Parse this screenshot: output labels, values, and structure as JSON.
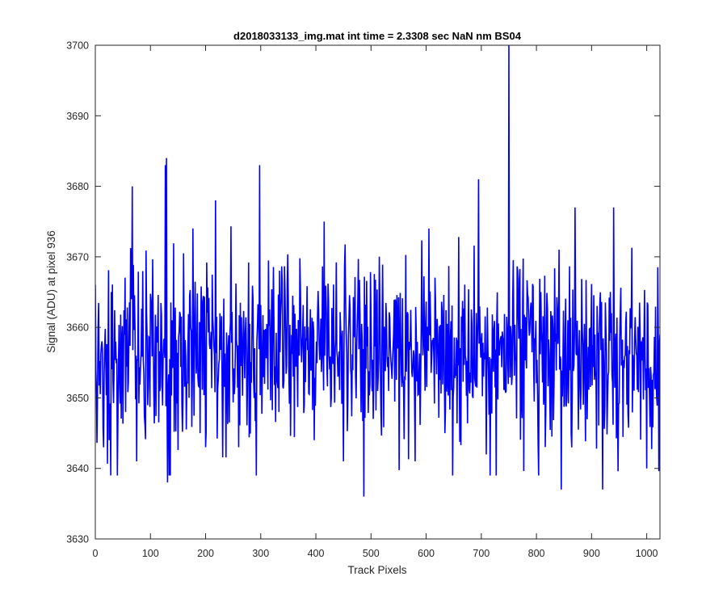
{
  "chart_data": {
    "type": "line",
    "title": "d2018033133_img.mat int time = 2.3308 sec  NaN nm BS04",
    "xlabel": "Track Pixels",
    "ylabel": "Signal (ADU) at pixel 936",
    "xlim": [
      0,
      1024
    ],
    "ylim": [
      3630,
      3700
    ],
    "xticks": [
      0,
      100,
      200,
      300,
      400,
      500,
      600,
      700,
      800,
      900,
      1000
    ],
    "yticks": [
      3630,
      3640,
      3650,
      3660,
      3670,
      3680,
      3690,
      3700
    ],
    "grid": false,
    "line_color": "#0000ff",
    "series": [
      {
        "x_start": 1,
        "x_step": 1,
        "n_points": 1024,
        "noise_model": {
          "mean": 3656.5,
          "std": 6.5,
          "seed": 20180331
        },
        "values_sampled": [
          {
            "x": 0,
            "y": 3666
          },
          {
            "x": 2,
            "y": 3651
          },
          {
            "x": 15,
            "y": 3643
          },
          {
            "x": 25,
            "y": 3644
          },
          {
            "x": 28,
            "y": 3639
          },
          {
            "x": 40,
            "y": 3639
          },
          {
            "x": 55,
            "y": 3648
          },
          {
            "x": 67,
            "y": 3680
          },
          {
            "x": 75,
            "y": 3641
          },
          {
            "x": 127,
            "y": 3683
          },
          {
            "x": 129,
            "y": 3684
          },
          {
            "x": 131,
            "y": 3638
          },
          {
            "x": 190,
            "y": 3645
          },
          {
            "x": 200,
            "y": 3643
          },
          {
            "x": 218,
            "y": 3678
          },
          {
            "x": 260,
            "y": 3643
          },
          {
            "x": 292,
            "y": 3639
          },
          {
            "x": 298,
            "y": 3683
          },
          {
            "x": 333,
            "y": 3648
          },
          {
            "x": 397,
            "y": 3644
          },
          {
            "x": 415,
            "y": 3675
          },
          {
            "x": 450,
            "y": 3641
          },
          {
            "x": 487,
            "y": 3636
          },
          {
            "x": 580,
            "y": 3641
          },
          {
            "x": 605,
            "y": 3674
          },
          {
            "x": 648,
            "y": 3639
          },
          {
            "x": 695,
            "y": 3681
          },
          {
            "x": 750,
            "y": 3700
          },
          {
            "x": 845,
            "y": 3637
          },
          {
            "x": 870,
            "y": 3677
          },
          {
            "x": 920,
            "y": 3637
          },
          {
            "x": 940,
            "y": 3677
          },
          {
            "x": 1000,
            "y": 3640
          },
          {
            "x": 1024,
            "y": 3659
          }
        ]
      }
    ]
  }
}
